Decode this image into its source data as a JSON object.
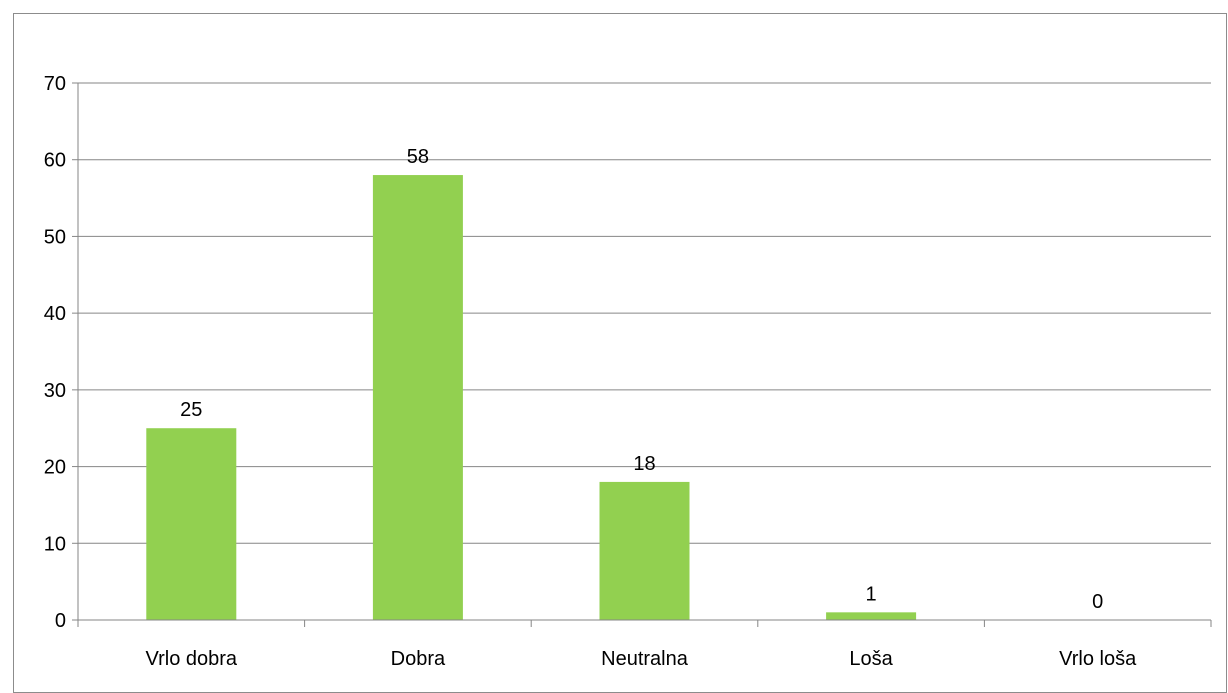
{
  "chart_data": {
    "type": "bar",
    "categories": [
      "Vrlo dobra",
      "Dobra",
      "Neutralna",
      "Loša",
      "Vrlo loša"
    ],
    "values": [
      25,
      58,
      18,
      1,
      0
    ],
    "data_labels": [
      "25",
      "58",
      "18",
      "1",
      "0"
    ],
    "y_ticks": [
      0,
      10,
      20,
      30,
      40,
      50,
      60,
      70
    ],
    "ylim": [
      0,
      70
    ],
    "title": "",
    "xlabel": "",
    "ylabel": "",
    "grid": true,
    "legend": "none",
    "bar_color": "#92d050",
    "grid_color": "#868686"
  }
}
